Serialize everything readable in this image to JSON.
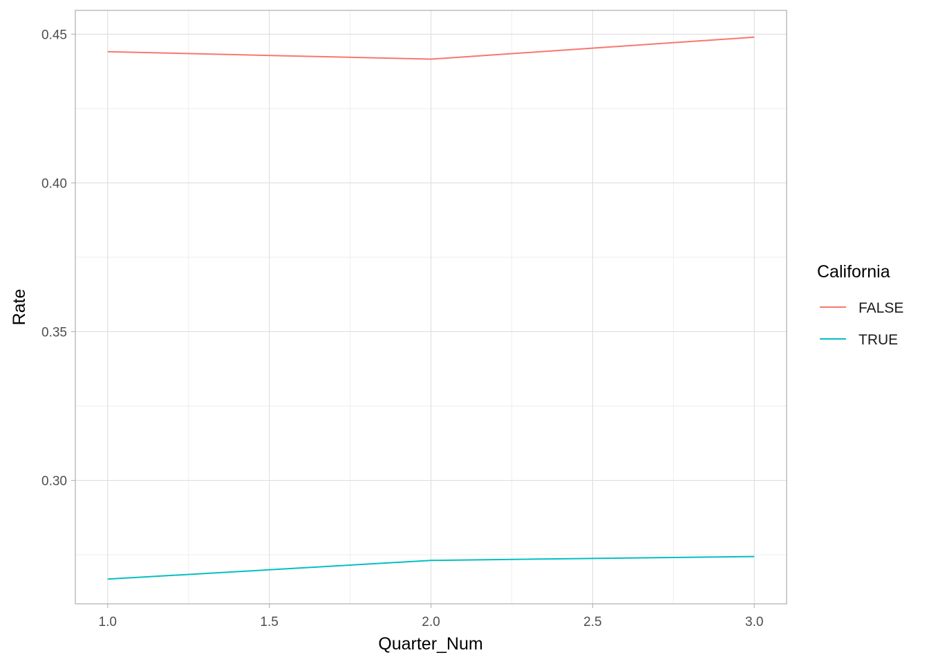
{
  "chart_data": {
    "type": "line",
    "xlabel": "Quarter_Num",
    "ylabel": "Rate",
    "xlim": [
      0.9,
      3.1
    ],
    "ylim": [
      0.2585,
      0.458
    ],
    "x_ticks": [
      1.0,
      1.5,
      2.0,
      2.5,
      3.0
    ],
    "x_tick_labels": [
      "1.0",
      "1.5",
      "2.0",
      "2.5",
      "3.0"
    ],
    "y_ticks": [
      0.3,
      0.35,
      0.4,
      0.45
    ],
    "y_tick_labels": [
      "0.30",
      "0.35",
      "0.40",
      "0.45"
    ],
    "grid": true,
    "legend": {
      "title": "California",
      "position": "right"
    },
    "series": [
      {
        "name": "FALSE",
        "color": "#F8766D",
        "x": [
          1.0,
          2.0,
          3.0
        ],
        "values": [
          0.4441,
          0.4416,
          0.449
        ]
      },
      {
        "name": "TRUE",
        "color": "#00BFC4",
        "x": [
          1.0,
          2.0,
          3.0
        ],
        "values": [
          0.2668,
          0.2731,
          0.2744
        ]
      }
    ]
  }
}
